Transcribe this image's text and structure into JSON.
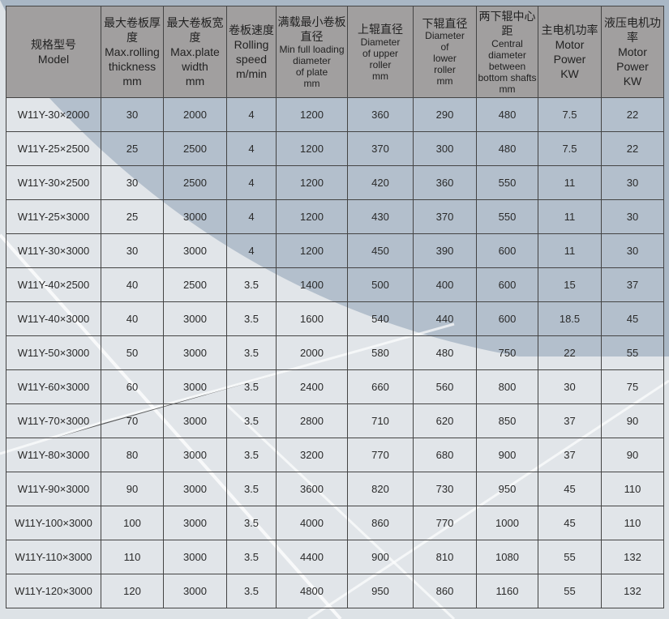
{
  "headers": [
    {
      "zh": "规格型号",
      "en": [
        "Model"
      ]
    },
    {
      "zh": "最大卷板厚度",
      "en": [
        "Max.rolling",
        "thickness",
        "mm"
      ]
    },
    {
      "zh": "最大卷板宽度",
      "en": [
        "Max.plate",
        "width",
        "mm"
      ]
    },
    {
      "zh": "卷板速度",
      "en": [
        "Rolling",
        "speed",
        "m/min"
      ]
    },
    {
      "zh": "满载最小卷板直径",
      "en": [
        "Min full loading",
        "diameter",
        "of plate",
        "mm"
      ]
    },
    {
      "zh": "上辊直径",
      "en": [
        "Diameter",
        "of upper",
        "roller",
        "mm"
      ]
    },
    {
      "zh": "下辊直径",
      "en": [
        "Diameter",
        "of",
        "lower",
        "roller",
        "mm"
      ]
    },
    {
      "zh": "两下辊中心距",
      "en": [
        "Central",
        "diameter",
        "between",
        "bottom shafts",
        "mm"
      ]
    },
    {
      "zh": "主电机功率",
      "en": [
        "Motor",
        "Power",
        "KW"
      ]
    },
    {
      "zh": "液压电机功率",
      "en": [
        "Motor",
        "Power",
        "KW"
      ]
    }
  ],
  "rows": [
    [
      "W11Y-30×2000",
      "30",
      "2000",
      "4",
      "1200",
      "360",
      "290",
      "480",
      "7.5",
      "22"
    ],
    [
      "W11Y-25×2500",
      "25",
      "2500",
      "4",
      "1200",
      "370",
      "300",
      "480",
      "7.5",
      "22"
    ],
    [
      "W11Y-30×2500",
      "30",
      "2500",
      "4",
      "1200",
      "420",
      "360",
      "550",
      "11",
      "30"
    ],
    [
      "W11Y-25×3000",
      "25",
      "3000",
      "4",
      "1200",
      "430",
      "370",
      "550",
      "11",
      "30"
    ],
    [
      "W11Y-30×3000",
      "30",
      "3000",
      "4",
      "1200",
      "450",
      "390",
      "600",
      "11",
      "30"
    ],
    [
      "W11Y-40×2500",
      "40",
      "2500",
      "3.5",
      "1400",
      "500",
      "400",
      "600",
      "15",
      "37"
    ],
    [
      "W11Y-40×3000",
      "40",
      "3000",
      "3.5",
      "1600",
      "540",
      "440",
      "600",
      "18.5",
      "45"
    ],
    [
      "W11Y-50×3000",
      "50",
      "3000",
      "3.5",
      "2000",
      "580",
      "480",
      "750",
      "22",
      "55"
    ],
    [
      "W11Y-60×3000",
      "60",
      "3000",
      "3.5",
      "2400",
      "660",
      "560",
      "800",
      "30",
      "75"
    ],
    [
      "W11Y-70×3000",
      "70",
      "3000",
      "3.5",
      "2800",
      "710",
      "620",
      "850",
      "37",
      "90"
    ],
    [
      "W11Y-80×3000",
      "80",
      "3000",
      "3.5",
      "3200",
      "770",
      "680",
      "900",
      "37",
      "90"
    ],
    [
      "W11Y-90×3000",
      "90",
      "3000",
      "3.5",
      "3600",
      "820",
      "730",
      "950",
      "45",
      "110"
    ],
    [
      "W11Y-100×3000",
      "100",
      "3000",
      "3.5",
      "4000",
      "860",
      "770",
      "1000",
      "45",
      "110"
    ],
    [
      "W11Y-110×3000",
      "110",
      "3000",
      "3.5",
      "4400",
      "900",
      "810",
      "1080",
      "55",
      "132"
    ],
    [
      "W11Y-120×3000",
      "120",
      "3000",
      "3.5",
      "4800",
      "950",
      "860",
      "1160",
      "55",
      "132"
    ]
  ]
}
